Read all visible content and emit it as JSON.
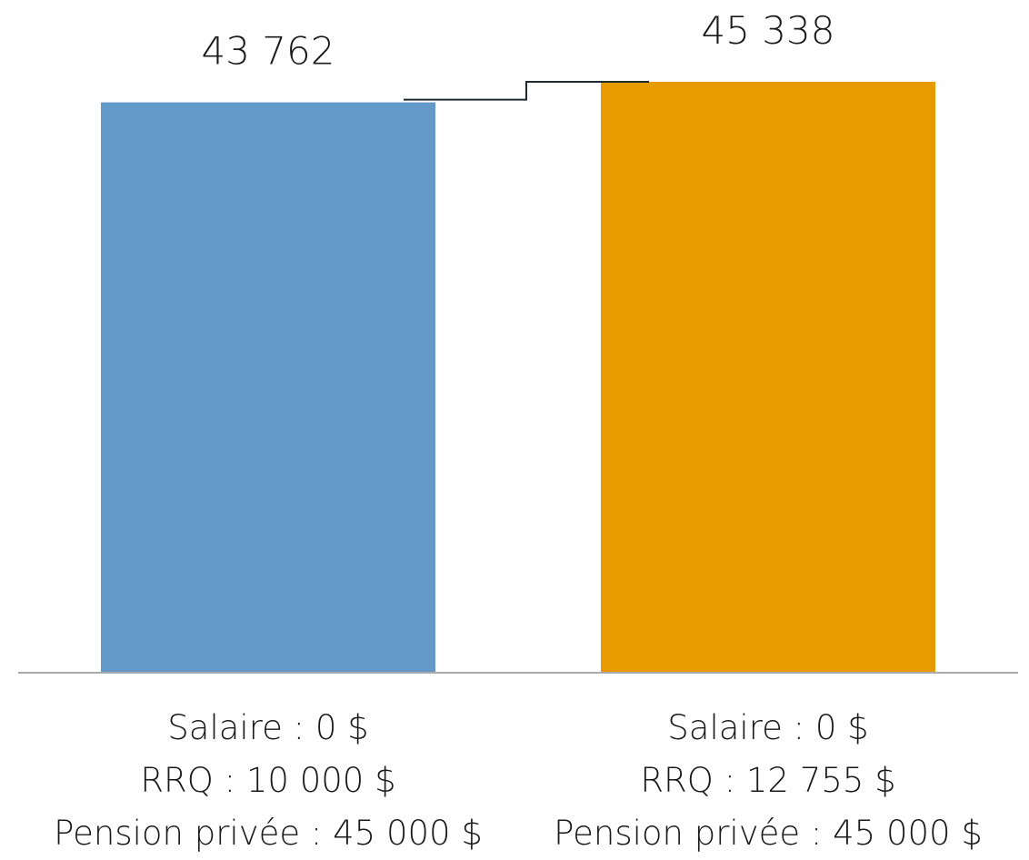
{
  "chart_data": {
    "type": "bar",
    "categories": [
      [
        "Salaire : 0 $",
        "RRQ : 10 000 $",
        "Pension privée :  45 000 $"
      ],
      [
        "Salaire : 0 $",
        "RRQ : 12 755 $",
        "Pension privée :  45 000 $"
      ]
    ],
    "values": [
      43762,
      45338
    ],
    "value_labels": [
      "43 762",
      "45 338"
    ],
    "colors": [
      "#6399c8",
      "#e69c00"
    ],
    "title": "",
    "xlabel": "",
    "ylabel": "",
    "ylim": [
      0,
      45338
    ],
    "grid": false,
    "legend": "none",
    "annotation": "step connector between bar tops"
  }
}
